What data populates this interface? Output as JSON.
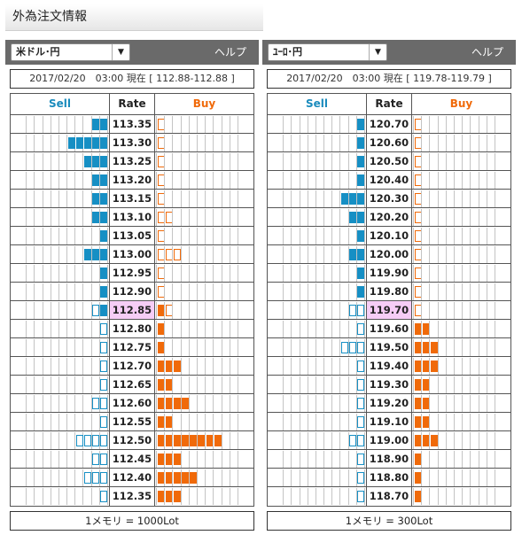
{
  "page_title": "外為注文情報",
  "panels": [
    {
      "pair": "米ドル･円",
      "help": "ヘルプ",
      "info": "2017/02/20　03:00 現在 [ 112.88-112.88 ]",
      "headers": {
        "sell": "Sell",
        "rate": "Rate",
        "buy": "Buy"
      },
      "unit": "1メモリ = 1000Lot",
      "current_rate": "112.85",
      "rows": [
        {
          "rate": "113.35",
          "sell": 2,
          "sell_open": 0,
          "buy": 0,
          "buy_open": 1
        },
        {
          "rate": "113.30",
          "sell": 5,
          "sell_open": 0,
          "buy": 0,
          "buy_open": 1
        },
        {
          "rate": "113.25",
          "sell": 3,
          "sell_open": 0,
          "buy": 0,
          "buy_open": 1
        },
        {
          "rate": "113.20",
          "sell": 2,
          "sell_open": 0,
          "buy": 0,
          "buy_open": 1
        },
        {
          "rate": "113.15",
          "sell": 2,
          "sell_open": 0,
          "buy": 0,
          "buy_open": 1
        },
        {
          "rate": "113.10",
          "sell": 2,
          "sell_open": 0,
          "buy": 0,
          "buy_open": 2
        },
        {
          "rate": "113.05",
          "sell": 1,
          "sell_open": 0,
          "buy": 0,
          "buy_open": 1
        },
        {
          "rate": "113.00",
          "sell": 3,
          "sell_open": 0,
          "buy": 0,
          "buy_open": 3
        },
        {
          "rate": "112.95",
          "sell": 1,
          "sell_open": 0,
          "buy": 0,
          "buy_open": 1
        },
        {
          "rate": "112.90",
          "sell": 1,
          "sell_open": 0,
          "buy": 0,
          "buy_open": 1
        },
        {
          "rate": "112.85",
          "sell": 1,
          "sell_open": 1,
          "buy": 1,
          "buy_open": 1
        },
        {
          "rate": "112.80",
          "sell": 0,
          "sell_open": 1,
          "buy": 1,
          "buy_open": 0
        },
        {
          "rate": "112.75",
          "sell": 0,
          "sell_open": 1,
          "buy": 1,
          "buy_open": 0
        },
        {
          "rate": "112.70",
          "sell": 0,
          "sell_open": 1,
          "buy": 3,
          "buy_open": 0
        },
        {
          "rate": "112.65",
          "sell": 0,
          "sell_open": 1,
          "buy": 2,
          "buy_open": 0
        },
        {
          "rate": "112.60",
          "sell": 0,
          "sell_open": 2,
          "buy": 4,
          "buy_open": 0
        },
        {
          "rate": "112.55",
          "sell": 0,
          "sell_open": 1,
          "buy": 2,
          "buy_open": 0
        },
        {
          "rate": "112.50",
          "sell": 0,
          "sell_open": 4,
          "buy": 8,
          "buy_open": 0
        },
        {
          "rate": "112.45",
          "sell": 0,
          "sell_open": 2,
          "buy": 3,
          "buy_open": 0
        },
        {
          "rate": "112.40",
          "sell": 0,
          "sell_open": 3,
          "buy": 5,
          "buy_open": 0
        },
        {
          "rate": "112.35",
          "sell": 0,
          "sell_open": 1,
          "buy": 3,
          "buy_open": 0
        }
      ]
    },
    {
      "pair": "ﾕｰﾛ･円",
      "help": "ヘルプ",
      "info": "2017/02/20　03:00 現在 [ 119.78-119.79 ]",
      "headers": {
        "sell": "Sell",
        "rate": "Rate",
        "buy": "Buy"
      },
      "unit": "1メモリ = 300Lot",
      "current_rate": "119.70",
      "rows": [
        {
          "rate": "120.70",
          "sell": 1,
          "sell_open": 0,
          "buy": 0,
          "buy_open": 1
        },
        {
          "rate": "120.60",
          "sell": 1,
          "sell_open": 0,
          "buy": 0,
          "buy_open": 1
        },
        {
          "rate": "120.50",
          "sell": 1,
          "sell_open": 0,
          "buy": 0,
          "buy_open": 1
        },
        {
          "rate": "120.40",
          "sell": 1,
          "sell_open": 0,
          "buy": 0,
          "buy_open": 1
        },
        {
          "rate": "120.30",
          "sell": 3,
          "sell_open": 0,
          "buy": 0,
          "buy_open": 1
        },
        {
          "rate": "120.20",
          "sell": 2,
          "sell_open": 0,
          "buy": 0,
          "buy_open": 1
        },
        {
          "rate": "120.10",
          "sell": 1,
          "sell_open": 0,
          "buy": 0,
          "buy_open": 1
        },
        {
          "rate": "120.00",
          "sell": 2,
          "sell_open": 0,
          "buy": 0,
          "buy_open": 1
        },
        {
          "rate": "119.90",
          "sell": 1,
          "sell_open": 0,
          "buy": 0,
          "buy_open": 1
        },
        {
          "rate": "119.80",
          "sell": 1,
          "sell_open": 0,
          "buy": 0,
          "buy_open": 1
        },
        {
          "rate": "119.70",
          "sell": 0,
          "sell_open": 2,
          "buy": 0,
          "buy_open": 1
        },
        {
          "rate": "119.60",
          "sell": 0,
          "sell_open": 1,
          "buy": 2,
          "buy_open": 0
        },
        {
          "rate": "119.50",
          "sell": 0,
          "sell_open": 3,
          "buy": 3,
          "buy_open": 0
        },
        {
          "rate": "119.40",
          "sell": 0,
          "sell_open": 1,
          "buy": 3,
          "buy_open": 0
        },
        {
          "rate": "119.30",
          "sell": 0,
          "sell_open": 1,
          "buy": 2,
          "buy_open": 0
        },
        {
          "rate": "119.20",
          "sell": 0,
          "sell_open": 1,
          "buy": 2,
          "buy_open": 0
        },
        {
          "rate": "119.10",
          "sell": 0,
          "sell_open": 1,
          "buy": 2,
          "buy_open": 0
        },
        {
          "rate": "119.00",
          "sell": 0,
          "sell_open": 2,
          "buy": 3,
          "buy_open": 0
        },
        {
          "rate": "118.90",
          "sell": 0,
          "sell_open": 1,
          "buy": 1,
          "buy_open": 0
        },
        {
          "rate": "118.80",
          "sell": 0,
          "sell_open": 1,
          "buy": 1,
          "buy_open": 0
        },
        {
          "rate": "118.70",
          "sell": 0,
          "sell_open": 1,
          "buy": 1,
          "buy_open": 0
        }
      ]
    }
  ]
}
